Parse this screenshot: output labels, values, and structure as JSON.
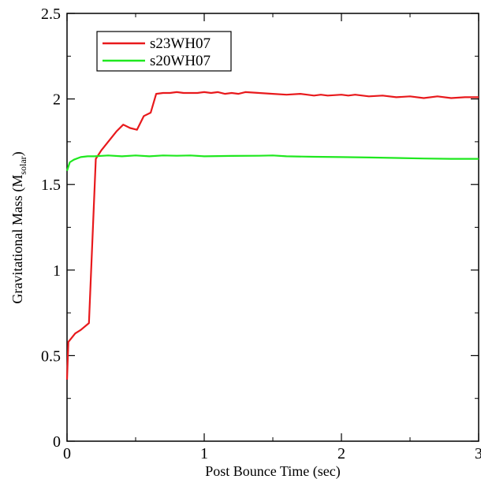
{
  "chart_data": {
    "type": "line",
    "xlabel": "Post Bounce Time (sec)",
    "ylabel_main": "Gravitational Mass (M",
    "ylabel_sub": "solar",
    "ylabel_close": ")",
    "xlim": [
      0,
      3
    ],
    "ylim": [
      0,
      2.5
    ],
    "x_ticks": [
      0,
      1,
      2,
      3
    ],
    "x_tick_labels": [
      "0",
      "1",
      "2",
      "3"
    ],
    "y_ticks": [
      0,
      0.5,
      1,
      1.5,
      2,
      2.5
    ],
    "y_tick_labels": [
      "0",
      "0.5",
      "1",
      "1.5",
      "2",
      "2.5"
    ],
    "grid": false,
    "legend_position": "top-left",
    "series": [
      {
        "name": "s23WH07",
        "color": "#e8191c",
        "points": [
          [
            0.0,
            0.36
          ],
          [
            0.01,
            0.58
          ],
          [
            0.03,
            0.6
          ],
          [
            0.06,
            0.63
          ],
          [
            0.1,
            0.65
          ],
          [
            0.16,
            0.69
          ],
          [
            0.21,
            1.65
          ],
          [
            0.25,
            1.7
          ],
          [
            0.3,
            1.75
          ],
          [
            0.36,
            1.81
          ],
          [
            0.41,
            1.85
          ],
          [
            0.46,
            1.83
          ],
          [
            0.51,
            1.82
          ],
          [
            0.56,
            1.9
          ],
          [
            0.61,
            1.92
          ],
          [
            0.65,
            2.03
          ],
          [
            0.7,
            2.035
          ],
          [
            0.75,
            2.035
          ],
          [
            0.8,
            2.04
          ],
          [
            0.85,
            2.035
          ],
          [
            0.9,
            2.035
          ],
          [
            0.95,
            2.035
          ],
          [
            1.0,
            2.04
          ],
          [
            1.05,
            2.035
          ],
          [
            1.1,
            2.04
          ],
          [
            1.15,
            2.03
          ],
          [
            1.2,
            2.035
          ],
          [
            1.25,
            2.03
          ],
          [
            1.3,
            2.04
          ],
          [
            1.4,
            2.035
          ],
          [
            1.5,
            2.03
          ],
          [
            1.6,
            2.025
          ],
          [
            1.7,
            2.03
          ],
          [
            1.75,
            2.025
          ],
          [
            1.8,
            2.02
          ],
          [
            1.85,
            2.025
          ],
          [
            1.9,
            2.02
          ],
          [
            2.0,
            2.025
          ],
          [
            2.05,
            2.02
          ],
          [
            2.1,
            2.025
          ],
          [
            2.2,
            2.015
          ],
          [
            2.3,
            2.02
          ],
          [
            2.4,
            2.01
          ],
          [
            2.5,
            2.015
          ],
          [
            2.6,
            2.005
          ],
          [
            2.7,
            2.015
          ],
          [
            2.8,
            2.005
          ],
          [
            2.9,
            2.01
          ],
          [
            3.0,
            2.01
          ]
        ]
      },
      {
        "name": "s20WH07",
        "color": "#1fe81f",
        "points": [
          [
            0.0,
            1.58
          ],
          [
            0.02,
            1.63
          ],
          [
            0.05,
            1.645
          ],
          [
            0.1,
            1.66
          ],
          [
            0.15,
            1.665
          ],
          [
            0.2,
            1.665
          ],
          [
            0.3,
            1.67
          ],
          [
            0.4,
            1.665
          ],
          [
            0.5,
            1.67
          ],
          [
            0.6,
            1.665
          ],
          [
            0.7,
            1.67
          ],
          [
            0.8,
            1.668
          ],
          [
            0.9,
            1.67
          ],
          [
            1.0,
            1.665
          ],
          [
            1.2,
            1.667
          ],
          [
            1.4,
            1.668
          ],
          [
            1.5,
            1.67
          ],
          [
            1.6,
            1.665
          ],
          [
            1.8,
            1.662
          ],
          [
            2.0,
            1.66
          ],
          [
            2.2,
            1.658
          ],
          [
            2.4,
            1.655
          ],
          [
            2.6,
            1.652
          ],
          [
            2.8,
            1.65
          ],
          [
            3.0,
            1.65
          ]
        ]
      }
    ]
  }
}
